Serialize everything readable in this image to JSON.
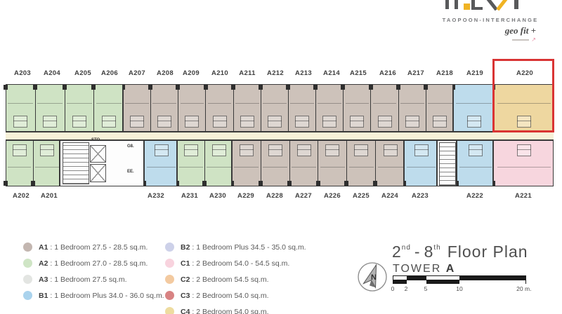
{
  "logo": {
    "tagline": "TAOPOON-INTERCHANGE",
    "partner": "geo fit +"
  },
  "floor_plan": {
    "top_unit_labels": [
      "A203",
      "A204",
      "A205",
      "A206",
      "A207",
      "A208",
      "A209",
      "A210",
      "A211",
      "A212",
      "A213",
      "A214",
      "A215",
      "A216",
      "A217",
      "A218",
      "A219",
      "A220"
    ],
    "bottom_unit_labels": [
      "A202",
      "A201",
      "A232",
      "A231",
      "A230",
      "A229",
      "A228",
      "A227",
      "A226",
      "A225",
      "A224",
      "A223",
      "A222",
      "A221"
    ],
    "core": {
      "storage": "STO.",
      "garbage": "G8.",
      "electrical": "EE."
    },
    "highlighted_unit": "A220"
  },
  "legend": {
    "sep": " : ",
    "columns": [
      {
        "items": [
          {
            "code": "A1",
            "desc": "1 Bedroom 27.5 - 28.5 sq.m.",
            "color": "#c3b6b0"
          },
          {
            "code": "A2",
            "desc": "1 Bedroom 27.0 - 28.5 sq.m.",
            "color": "#cfe5c5"
          },
          {
            "code": "A3",
            "desc": "1 Bedroom 27.5 sq.m.",
            "color": "#e3e5e2"
          },
          {
            "code": "B1",
            "desc": "1 Bedroom Plus 34.0 - 36.0 sq.m.",
            "color": "#aad3ed"
          }
        ]
      },
      {
        "items": [
          {
            "code": "B2",
            "desc": "1 Bedroom Plus 34.5 - 35.0 sq.m.",
            "color": "#cdd1e9"
          },
          {
            "code": "C1",
            "desc": "2 Bedroom 54.0 - 54.5 sq.m.",
            "color": "#f8d3de"
          },
          {
            "code": "C2",
            "desc": "2 Bedroom 54.5 sq.m.",
            "color": "#f3caa0"
          },
          {
            "code": "C3",
            "desc": "2 Bedroom 54.0 sq.m.",
            "color": "#d88383"
          },
          {
            "code": "C4",
            "desc": "2 Bedroom 54.0 sq.m.",
            "color": "#eedca0"
          }
        ]
      }
    ]
  },
  "title_block": {
    "floor_from": "2",
    "floor_from_sup": "nd",
    "separator": "-",
    "floor_to": "8",
    "floor_to_sup": "th",
    "title": "Floor Plan",
    "tower_label": "TOWER",
    "tower_name": "A",
    "compass_letter": "N",
    "scale_labels": [
      "0",
      "2",
      "5",
      "10",
      "20 m."
    ]
  },
  "colors": {
    "green": "#cfe3c4",
    "taupe": "#cdc2ba",
    "blue": "#bedcec",
    "yellow": "#eed7a0",
    "pink": "#f7d6de",
    "core": "#fdfdfd",
    "corridor": "#f7f1d8",
    "wall": "#3a3a3a",
    "highlight": "#d93434"
  }
}
